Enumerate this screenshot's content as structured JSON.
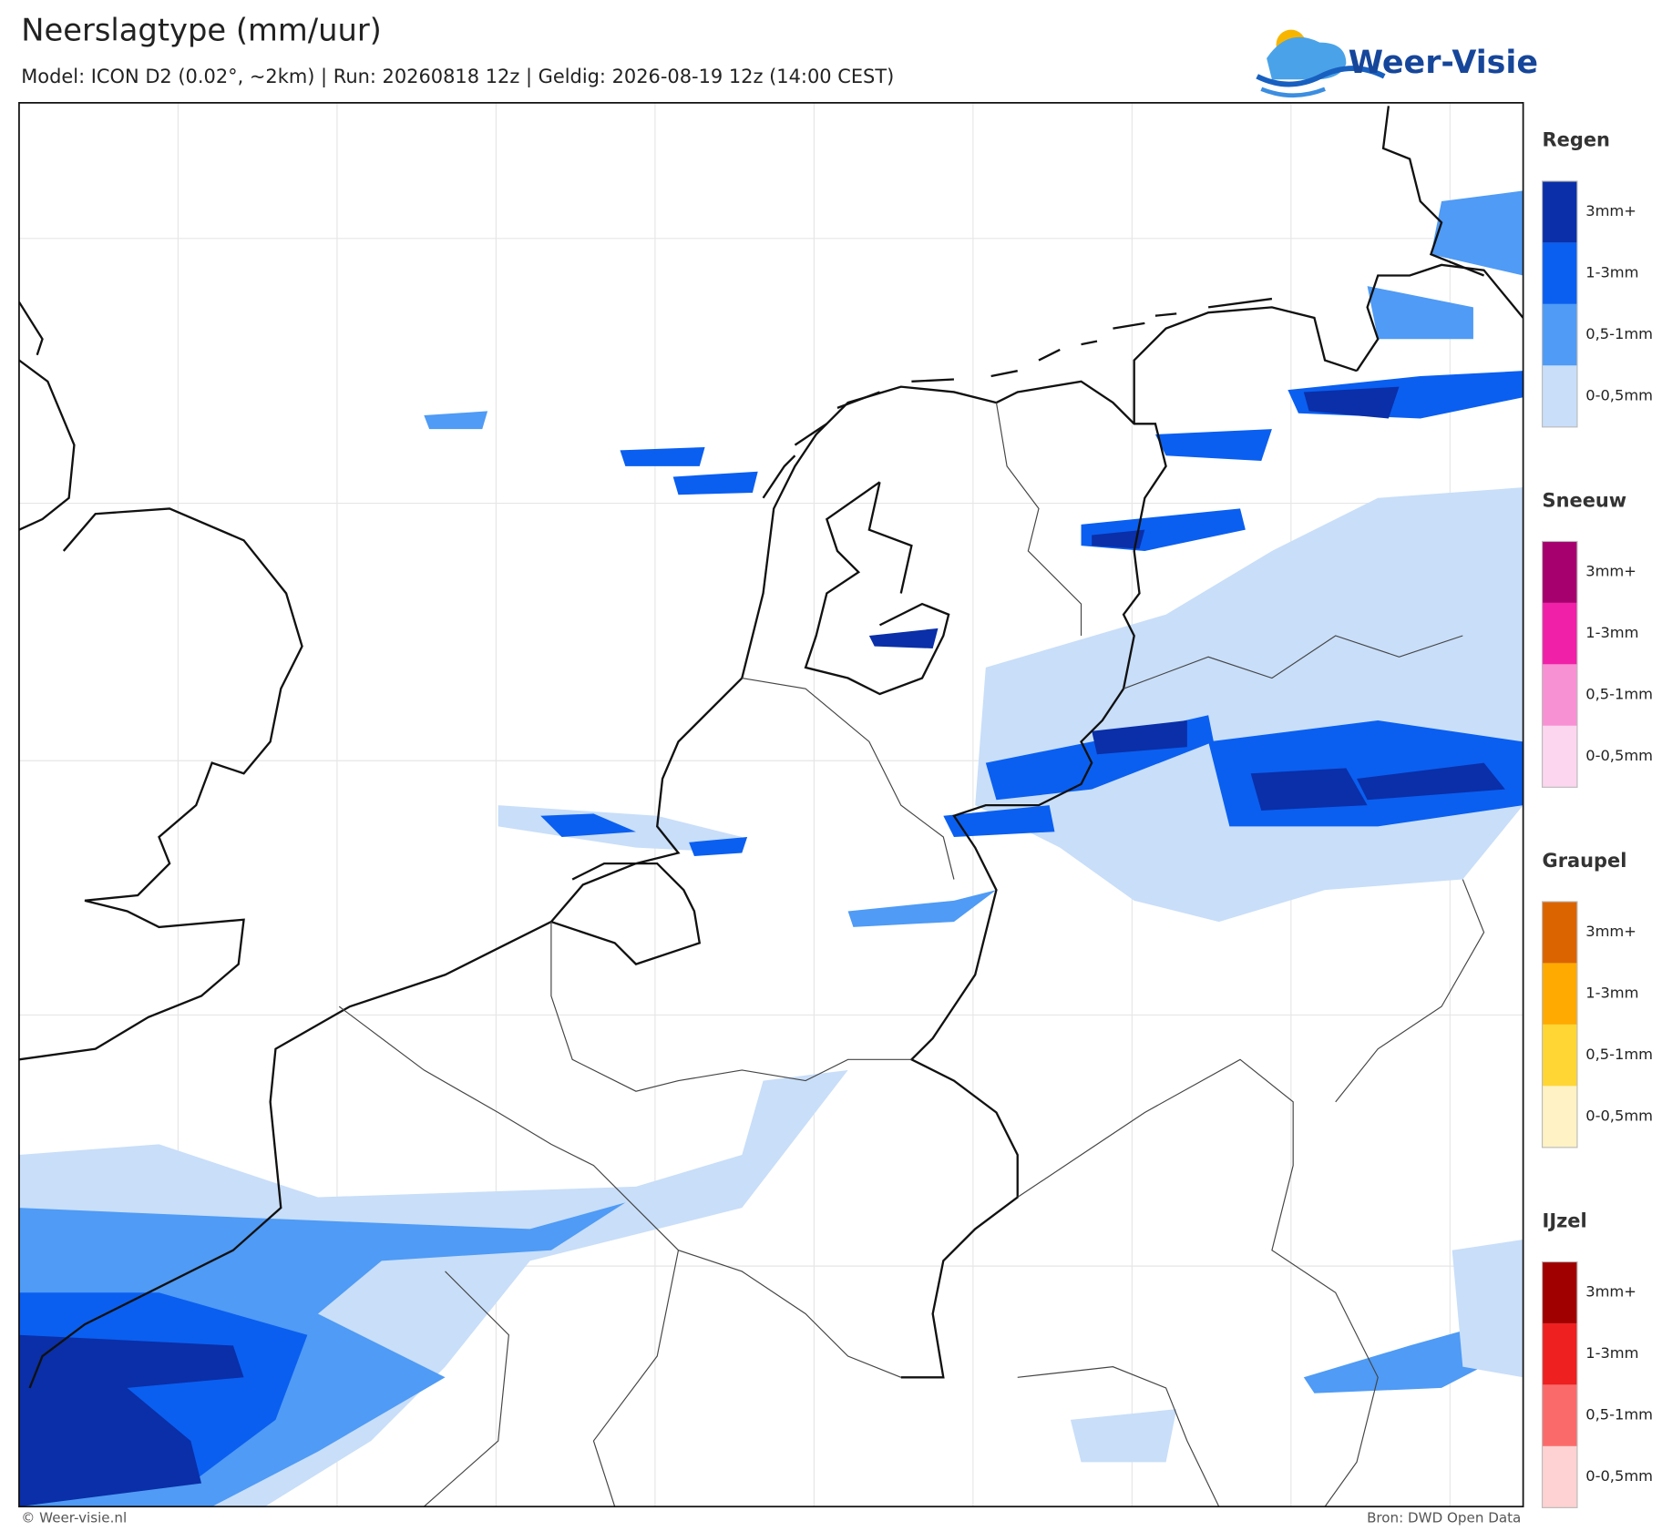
{
  "header": {
    "title": "Neerslagtype (mm/uur)",
    "subtitle": "Model: ICON D2 (0.02°, ~2km)  |  Run: 20260818 12z  |  Geldig: 2026-08-19 12z (14:00 CEST)",
    "logo": "Weer-Visie"
  },
  "legend": [
    {
      "title": "Regen",
      "items": [
        {
          "label": "3mm+",
          "color": "#0a2fa8"
        },
        {
          "label": "1-3mm",
          "color": "#0a5ff0"
        },
        {
          "label": "0,5-1mm",
          "color": "#4f9bf5"
        },
        {
          "label": "0-0,5mm",
          "color": "#c8def9"
        }
      ]
    },
    {
      "title": "Sneeuw",
      "items": [
        {
          "label": "3mm+",
          "color": "#a6006e"
        },
        {
          "label": "1-3mm",
          "color": "#f020a8"
        },
        {
          "label": "0,5-1mm",
          "color": "#f890d4"
        },
        {
          "label": "0-0,5mm",
          "color": "#fcd6ef"
        }
      ]
    },
    {
      "title": "Graupel",
      "items": [
        {
          "label": "3mm+",
          "color": "#dc6400"
        },
        {
          "label": "1-3mm",
          "color": "#ffaa00"
        },
        {
          "label": "0,5-1mm",
          "color": "#ffd633"
        },
        {
          "label": "0-0,5mm",
          "color": "#fff2c4"
        }
      ]
    },
    {
      "title": "IJzel",
      "items": [
        {
          "label": "3mm+",
          "color": "#a00000"
        },
        {
          "label": "1-3mm",
          "color": "#ee2020"
        },
        {
          "label": "0,5-1mm",
          "color": "#fb6a6a"
        },
        {
          "label": "0-0,5mm",
          "color": "#fed2d2"
        }
      ]
    }
  ],
  "footer": {
    "left": "© Weer-visie.nl",
    "right": "Bron: DWD Open Data"
  }
}
